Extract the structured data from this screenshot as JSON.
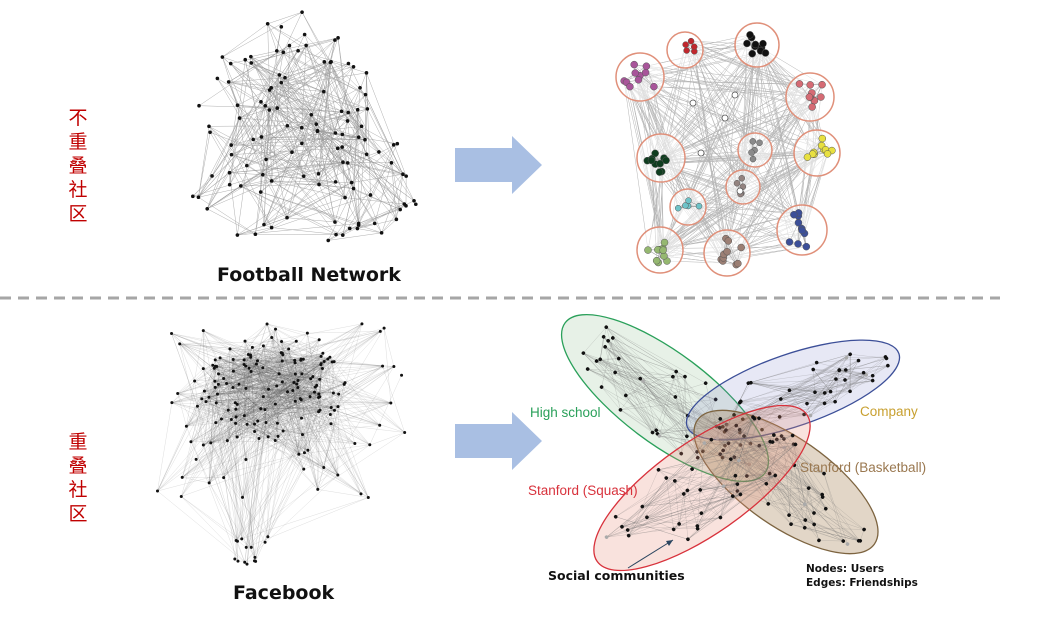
{
  "top_section": {
    "side_label": "不重叠社区",
    "left_caption": "Football Network",
    "cluster_colors": [
      "#c0272d",
      "#111111",
      "#a8559a",
      "#d56b74",
      "#0f3d1f",
      "#8a8a8a",
      "#e8e040",
      "#938380",
      "#6ec3c8",
      "#3c4f98",
      "#95b870",
      "#9c7f74"
    ],
    "ring_color": "#e0907a"
  },
  "bottom_section": {
    "side_label": "重叠社区",
    "left_caption": "Facebook",
    "communities": [
      {
        "label": "High school",
        "color": "#2aa05a"
      },
      {
        "label": "Company",
        "color": "#c8a030"
      },
      {
        "label": "Stanford (Basketball)",
        "color": "#9a7850"
      },
      {
        "label": "Stanford (Squash)",
        "color": "#d8323c"
      }
    ],
    "annotation": "Social communities",
    "legend": [
      "Nodes: Users",
      "Edges: Friendships"
    ]
  },
  "colors": {
    "arrow": "#a9bfe3",
    "divider": "#a6a6a6",
    "side_label": "#c00000"
  }
}
